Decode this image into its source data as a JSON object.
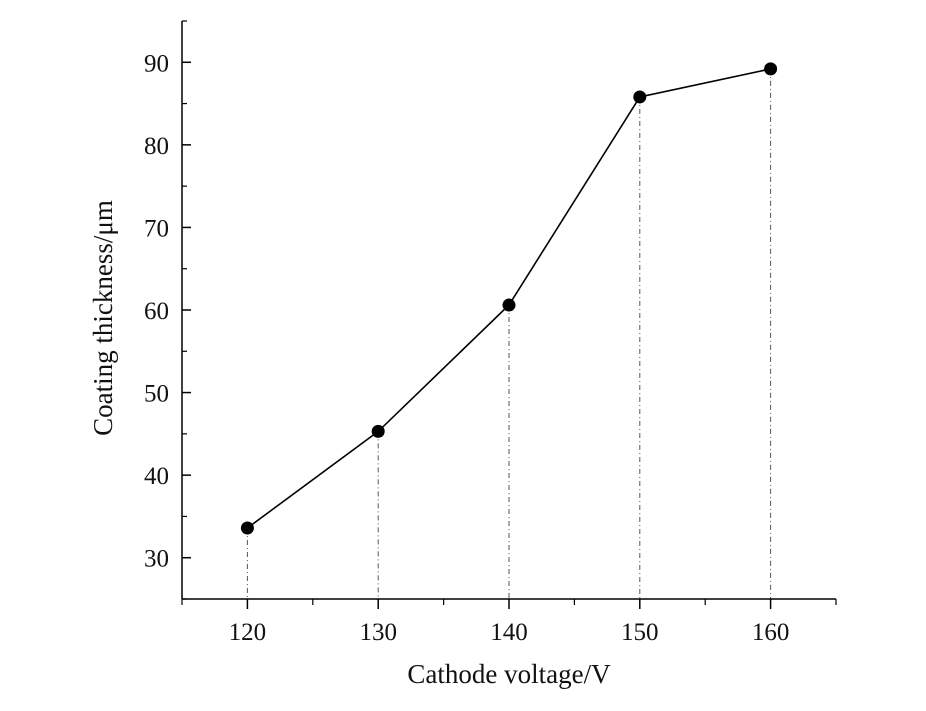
{
  "chart_data": {
    "type": "line",
    "title": "",
    "xlabel": "Cathode voltage/V",
    "ylabel": "Coating thickness/μm",
    "x": [
      120,
      130,
      140,
      150,
      160
    ],
    "series": [
      {
        "values": [
          33.6,
          45.3,
          60.6,
          85.8,
          89.2
        ]
      }
    ],
    "xlim": [
      115,
      165
    ],
    "ylim": [
      25,
      95
    ],
    "x_ticks": [
      120,
      130,
      140,
      150,
      160
    ],
    "x_tick_labels": [
      "120",
      "130",
      "140",
      "150",
      "160"
    ],
    "y_ticks": [
      30,
      40,
      50,
      60,
      70,
      80,
      90
    ],
    "y_tick_labels": [
      "30",
      "40",
      "50",
      "60",
      "70",
      "80",
      "90"
    ],
    "x_minor_step": 5,
    "y_minor_step": 5,
    "drop_lines": true,
    "grid": false,
    "legend": "none",
    "colors": {
      "line": "#000000",
      "marker": "#000000",
      "drop_line": "#555555",
      "axes": "#000000"
    }
  }
}
